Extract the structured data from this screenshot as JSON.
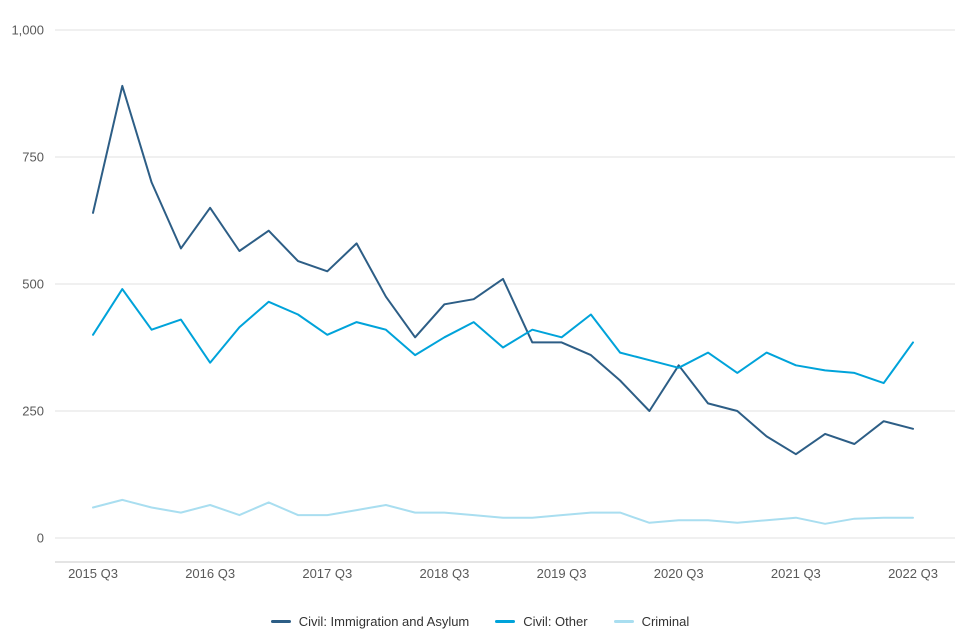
{
  "chart_data": {
    "type": "line",
    "x": [
      "2015 Q3",
      "2015 Q4",
      "2016 Q1",
      "2016 Q2",
      "2016 Q3",
      "2016 Q4",
      "2017 Q1",
      "2017 Q2",
      "2017 Q3",
      "2017 Q4",
      "2018 Q1",
      "2018 Q2",
      "2018 Q3",
      "2018 Q4",
      "2019 Q1",
      "2019 Q2",
      "2019 Q3",
      "2019 Q4",
      "2020 Q1",
      "2020 Q2",
      "2020 Q3",
      "2020 Q4",
      "2021 Q1",
      "2021 Q2",
      "2021 Q3",
      "2021 Q4",
      "2022 Q1",
      "2022 Q2",
      "2022 Q3"
    ],
    "x_tick_labels": [
      "2015 Q3",
      "2016 Q3",
      "2017 Q3",
      "2018 Q3",
      "2019 Q3",
      "2020 Q3",
      "2021 Q3",
      "2022 Q3"
    ],
    "series": [
      {
        "name": "Civil: Immigration and Asylum",
        "color": "#2d5e86",
        "values": [
          640,
          890,
          700,
          570,
          650,
          565,
          605,
          545,
          525,
          580,
          475,
          395,
          460,
          470,
          510,
          385,
          385,
          360,
          310,
          250,
          340,
          265,
          250,
          200,
          165,
          205,
          185,
          230,
          215
        ]
      },
      {
        "name": "Civil: Other",
        "color": "#00a3da",
        "values": [
          400,
          490,
          410,
          430,
          345,
          415,
          465,
          440,
          400,
          425,
          410,
          360,
          395,
          425,
          375,
          410,
          395,
          440,
          365,
          350,
          335,
          365,
          325,
          365,
          340,
          330,
          325,
          305,
          385
        ]
      },
      {
        "name": "Criminal",
        "color": "#a9def0",
        "values": [
          60,
          75,
          60,
          50,
          65,
          45,
          70,
          45,
          45,
          55,
          65,
          50,
          50,
          45,
          40,
          40,
          45,
          50,
          50,
          30,
          35,
          35,
          30,
          35,
          40,
          28,
          38,
          40,
          40
        ]
      }
    ],
    "ylim": [
      0,
      1000
    ],
    "yticks": [
      0,
      250,
      500,
      750,
      1000
    ],
    "ytick_labels": [
      "0",
      "250",
      "500",
      "750",
      "1,000"
    ],
    "grid": true,
    "legend_position": "bottom",
    "colors": {
      "grid": "#e2e2e2",
      "axis": "#c9c9c9",
      "tick_text": "#595959"
    }
  }
}
